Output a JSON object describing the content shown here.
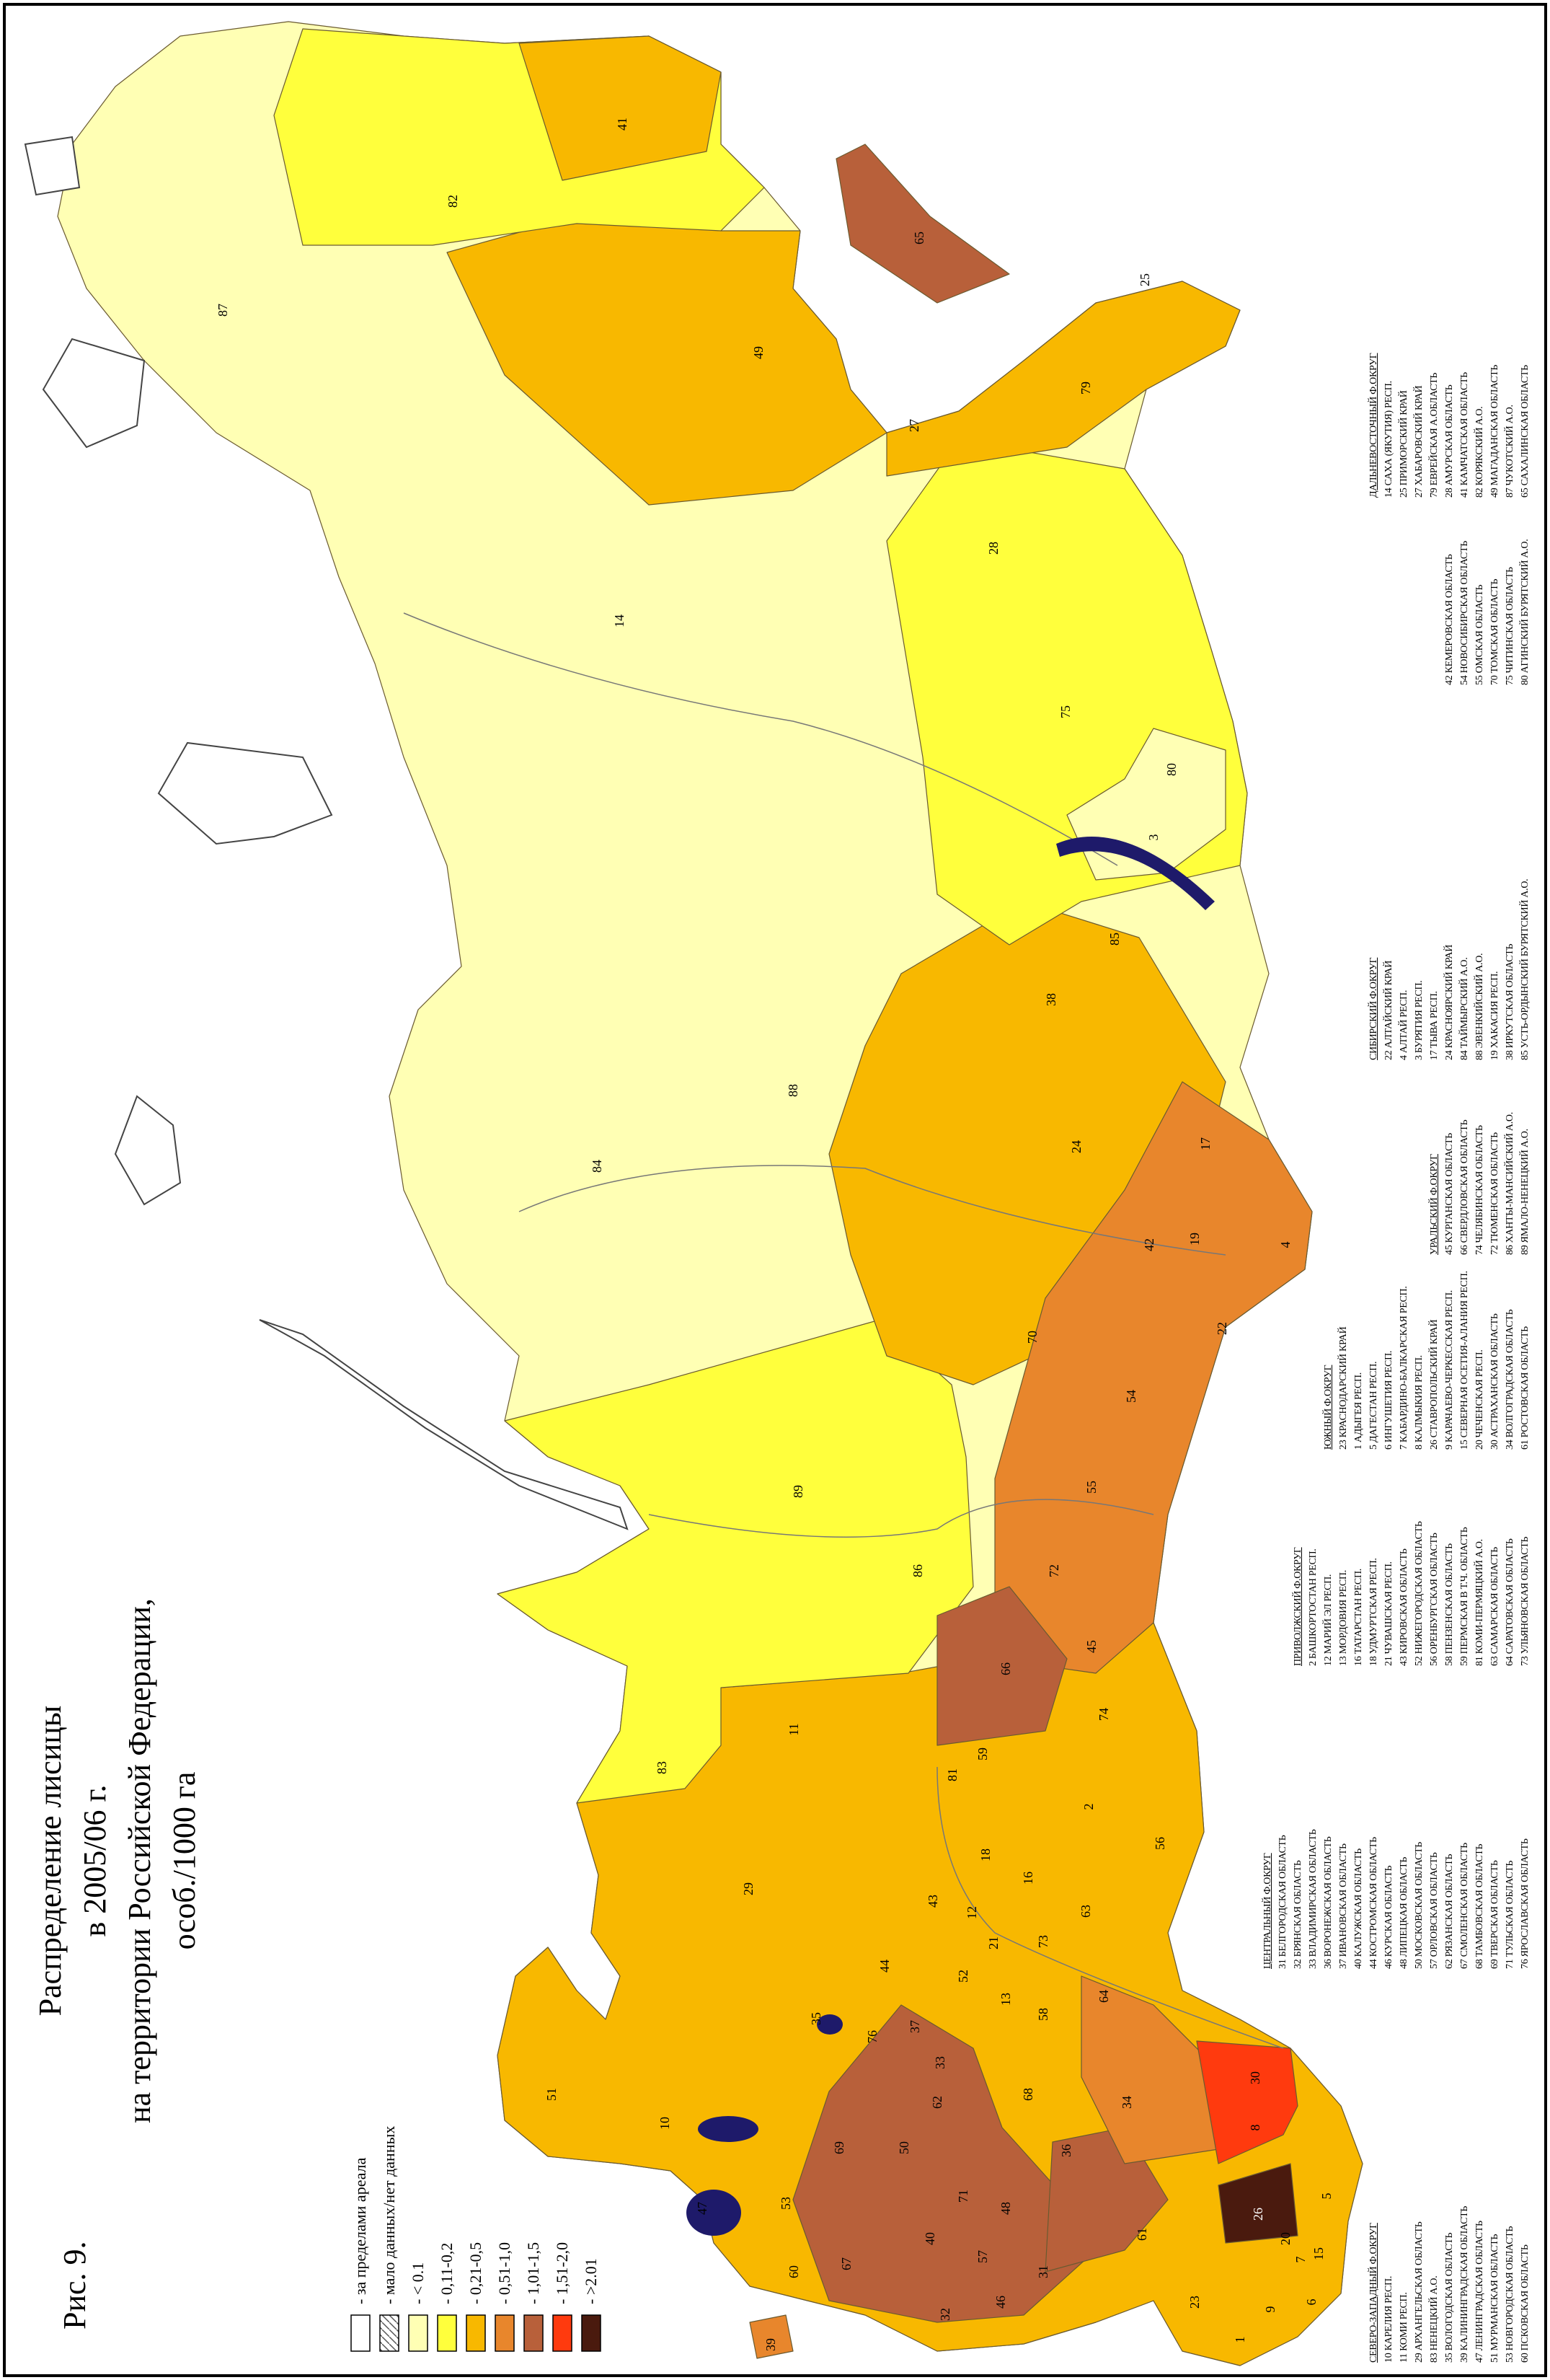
{
  "header": {
    "figure": "Рис. 9.",
    "title": [
      "Распределение лисицы",
      "в 2005/06 г.",
      "на территории Российской Федерации,",
      "особ./1000 га"
    ]
  },
  "legend": [
    {
      "label": "- за пределами ареала",
      "color": "#ffffff"
    },
    {
      "label": "- мало данных/нет данных",
      "hatched": true
    },
    {
      "label": "- < 0.1",
      "color": "#ffffb4"
    },
    {
      "label": "- 0,11-0,2",
      "color": "#ffff3c"
    },
    {
      "label": "- 0,21-0,5",
      "color": "#f8b800"
    },
    {
      "label": "- 0,51-1,0",
      "color": "#e8862c"
    },
    {
      "label": "- 1,01-1,5",
      "color": "#b8603a"
    },
    {
      "label": "- 1,51-2,0",
      "color": "#ff3a0e"
    },
    {
      "label": "- >2.01",
      "color": "#4a1a0e"
    }
  ],
  "map": {
    "regions": [
      "87",
      "41",
      "82",
      "65",
      "25",
      "49",
      "79",
      "27",
      "28",
      "14",
      "75",
      "80",
      "3",
      "85",
      "38",
      "88",
      "84",
      "24",
      "17",
      "19",
      "42",
      "4",
      "22",
      "70",
      "54",
      "89",
      "55",
      "72",
      "86",
      "66",
      "45",
      "74",
      "83",
      "11",
      "81",
      "59",
      "2",
      "56",
      "18",
      "43",
      "16",
      "29",
      "12",
      "21",
      "63",
      "73",
      "44",
      "52",
      "13",
      "64",
      "35",
      "37",
      "76",
      "33",
      "58",
      "51",
      "62",
      "68",
      "34",
      "30",
      "10",
      "69",
      "50",
      "8",
      "36",
      "71",
      "48",
      "47",
      "53",
      "26",
      "5",
      "20",
      "15",
      "7",
      "61",
      "40",
      "57",
      "67",
      "31",
      "60",
      "32",
      "46",
      "23",
      "9",
      "6",
      "1",
      "39"
    ]
  },
  "districts": [
    {
      "title": "СЕВЕРО-ЗАПАДНЫЙ Ф.ОКРУГ",
      "columns": [
        [
          "10 КАРЕЛИЯ РЕСП.",
          "11 КОМИ РЕСП.",
          "29 АРХАНГЕЛЬСКАЯ ОБЛАСТЬ",
          "83 НЕНЕЦКИЙ А.О.",
          "35 ВОЛОГОДСКАЯ ОБЛАСТЬ",
          "39 КАЛИНИНГРАДСКАЯ ОБЛАСТЬ",
          "47 ЛЕНИНГРАДСКАЯ ОБЛАСТЬ",
          "51 МУРМАНСКАЯ ОБЛАСТЬ",
          "53 НОВГОРОДСКАЯ ОБЛАСТЬ",
          "60 ПСКОВСКАЯ ОБЛАСТЬ"
        ]
      ]
    },
    {
      "title": "ЦЕНТРАЛЬНЫЙ Ф.ОКРУГ",
      "columns": [
        [
          "31 БЕЛГОРОДСКАЯ ОБЛАСТЬ",
          "32 БРЯНСКАЯ ОБЛАСТЬ",
          "33 ВЛАДИМИРСКАЯ ОБЛАСТЬ",
          "36 ВОРОНЕЖСКАЯ ОБЛАСТЬ",
          "37 ИВАНОВСКАЯ ОБЛАСТЬ",
          "40 КАЛУЖСКАЯ ОБЛАСТЬ",
          "44 КОСТРОМСКАЯ ОБЛАСТЬ",
          "46 КУРСКАЯ ОБЛАСТЬ",
          "48 ЛИПЕЦКАЯ ОБЛАСТЬ",
          "50 МОСКОВСКАЯ ОБЛАСТЬ",
          "57 ОРЛОВСКАЯ ОБЛАСТЬ",
          "62 РЯЗАНСКАЯ ОБЛАСТЬ",
          "67 СМОЛЕНСКАЯ ОБЛАСТЬ",
          "68 ТАМБОВСКАЯ ОБЛАСТЬ",
          "69 ТВЕРСКАЯ ОБЛАСТЬ",
          "71 ТУЛЬСКАЯ ОБЛАСТЬ",
          "76 ЯРОСЛАВСКАЯ ОБЛАСТЬ"
        ]
      ]
    },
    {
      "title": "ПРИВОЛЖСКИЙ Ф.ОКРУГ",
      "columns": [
        [
          "2 БАШКОРТОСТАН РЕСП.",
          "12 МАРИЙ ЭЛ РЕСП.",
          "13 МОРДОВИЯ РЕСП.",
          "16 ТАТАРСТАН РЕСП.",
          "18 УДМУРТСКАЯ РЕСП.",
          "21 ЧУВАШСКАЯ РЕСП.",
          "43 КИРОВСКАЯ ОБЛАСТЬ",
          "52 НИЖЕГОРОДСКАЯ ОБЛАСТЬ",
          "56 ОРЕНБУРГСКАЯ ОБЛАСТЬ",
          "58 ПЕНЗЕНСКАЯ ОБЛАСТЬ",
          "59 ПЕРМСКАЯ В Т.Ч. ОБЛАСТЬ",
          "81 КОМИ-ПЕРМЯЦКИЙ А.О.",
          "63 САМАРСКАЯ ОБЛАСТЬ",
          "64 САРАТОВСКАЯ ОБЛАСТЬ",
          "73 УЛЬЯНОВСКАЯ ОБЛАСТЬ"
        ]
      ]
    },
    {
      "title": "ЮЖНЫЙ Ф.ОКРУГ",
      "columns": [
        [
          "23 КРАСНОДАРСКИЙ КРАЙ",
          "1 АДЫГЕЯ РЕСП.",
          "5 ДАГЕСТАН РЕСП.",
          "6 ИНГУШЕТИЯ РЕСП.",
          "7 КАБАРДИНО-БАЛКАРСКАЯ РЕСП.",
          "8 КАЛМЫКИЯ РЕСП.",
          "26 СТАВРОПОЛЬСКИЙ КРАЙ",
          "9 КАРАЧАЕВО-ЧЕРКЕССКАЯ РЕСП.",
          "15 СЕВЕРНАЯ ОСЕТИЯ-АЛАНИЯ РЕСП.",
          "20 ЧЕЧЕНСКАЯ РЕСП.",
          "30 АСТРАХАНСКАЯ ОБЛАСТЬ",
          "34 ВОЛГОГРАДСКАЯ ОБЛАСТЬ",
          "61 РОСТОВСКАЯ ОБЛАСТЬ"
        ]
      ]
    },
    {
      "title": "УРАЛЬСКИЙ Ф.ОКРУГ",
      "columns": [
        [
          "45 КУРГАНСКАЯ ОБЛАСТЬ",
          "66 СВЕРДЛОВСКАЯ ОБЛАСТЬ",
          "74 ЧЕЛЯБИНСКАЯ ОБЛАСТЬ",
          "72 ТЮМЕНСКАЯ ОБЛАСТЬ",
          "86 ХАНТЫ-МАНСИЙСКИЙ А.О.",
          "89 ЯМАЛО-НЕНЕЦКИЙ А.О."
        ]
      ]
    },
    {
      "title": "СИБИРСКИЙ Ф.ОКРУГ",
      "columns": [
        [
          "22 АЛТАЙСКИЙ КРАЙ",
          "4 АЛТАЙ РЕСП.",
          "3 БУРЯТИЯ РЕСП.",
          "17 ТЫВА РЕСП.",
          "24 КРАСНОЯРСКИЙ КРАЙ",
          "84 ТАЙМЫРСКИЙ А.О.",
          "88 ЭВЕНКИЙСКИЙ А.О.",
          "19 ХАКАСИЯ РЕСП.",
          "38 ИРКУТСКАЯ ОБЛАСТЬ",
          "85 УСТЬ-ОРДЫНСКИЙ БУРЯТСКИЙ А.О."
        ],
        [
          "42 КЕМЕРОВСКАЯ ОБЛАСТЬ",
          "54 НОВОСИБИРСКАЯ ОБЛАСТЬ",
          "55 ОМСКАЯ ОБЛАСТЬ",
          "70 ТОМСКАЯ ОБЛАСТЬ",
          "75 ЧИТИНСКАЯ ОБЛАСТЬ",
          "80 АГИНСКИЙ БУРЯТСКИЙ А.О."
        ]
      ]
    },
    {
      "title": "ДАЛЬНЕВОСТОЧНЫЙ Ф.ОКРУГ",
      "columns": [
        [
          "14 САХА (ЯКУТИЯ) РЕСП.",
          "25 ПРИМОРСКИЙ КРАЙ",
          "27 ХАБАРОВСКИЙ КРАЙ",
          "79 ЕВРЕЙСКАЯ А.ОБЛАСТЬ",
          "28 АМУРСКАЯ ОБЛАСТЬ",
          "41 КАМЧАТСКАЯ ОБЛАСТЬ",
          "82 КОРЯКСКИЙ А.О.",
          "49 МАГАДАНСКАЯ ОБЛАСТЬ",
          "87 ЧУКОТСКИЙ А.О.",
          "65 САХАЛИНСКАЯ ОБЛАСТЬ"
        ]
      ]
    }
  ]
}
